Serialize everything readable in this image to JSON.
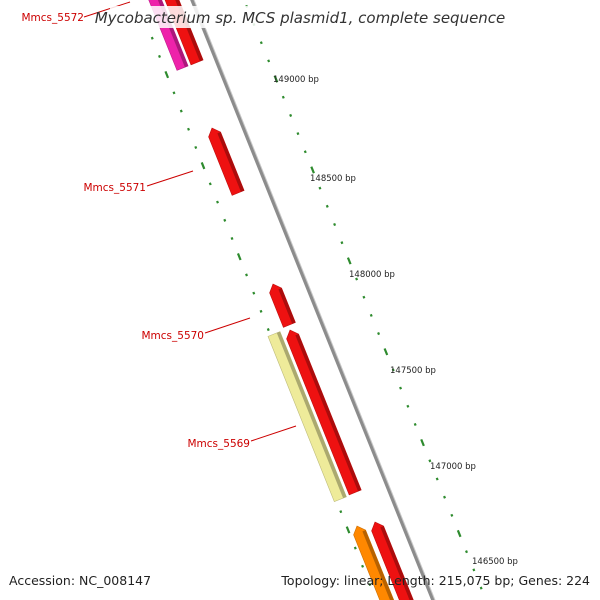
{
  "title": "Mycobacterium sp. MCS plasmid1, complete sequence",
  "colors": {
    "backbone": "#8c8c8c",
    "tick": "#2e8b2e",
    "gene_red": "#ee1111",
    "gene_magenta": "#ee22aa",
    "gene_yellow": "#eeeb9a",
    "gene_orange": "#ff8800",
    "label_red": "#cc0000"
  },
  "scale": {
    "unit": "bp",
    "ticks": [
      "149000 bp",
      "148500 bp",
      "148000 bp",
      "147500 bp",
      "147000 bp",
      "146500 bp"
    ]
  },
  "genes": [
    {
      "label": "Mmcs_5572",
      "color_key": "gene_magenta"
    },
    {
      "label": "",
      "color_key": "gene_red"
    },
    {
      "label": "Mmcs_5571",
      "color_key": "gene_red"
    },
    {
      "label": "Mmcs_5570",
      "color_key": "gene_red"
    },
    {
      "label": "",
      "color_key": "gene_red"
    },
    {
      "label": "Mmcs_5569",
      "color_key": "gene_yellow"
    },
    {
      "label": "",
      "color_key": "gene_orange"
    },
    {
      "label": "",
      "color_key": "gene_red"
    }
  ],
  "footer": {
    "accession": "Accession: NC_008147",
    "summary": "Topology: linear; Length: 215,075 bp; Genes: 224"
  }
}
